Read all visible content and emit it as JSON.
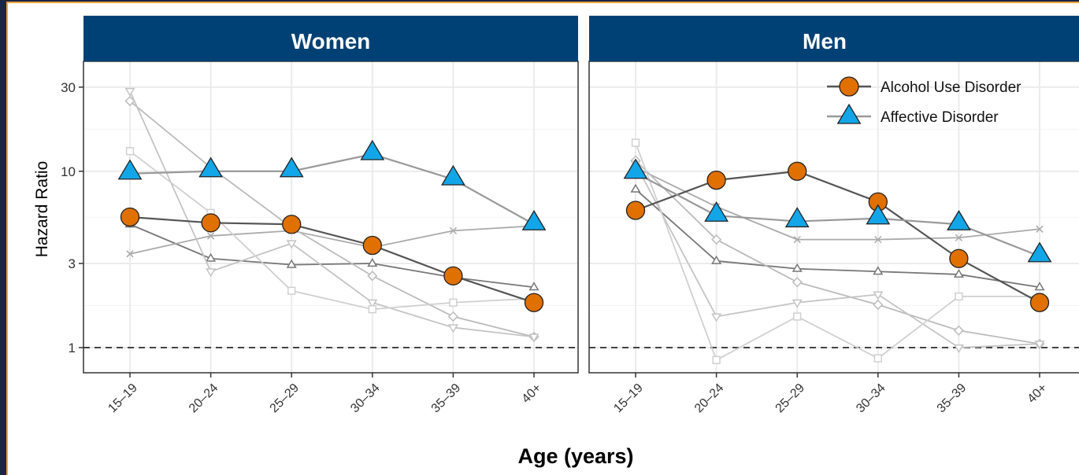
{
  "chart_data": {
    "type": "line",
    "y_scale": "log",
    "ylim": [
      0.72,
      42
    ],
    "y_ticks": [
      1,
      3,
      10,
      30
    ],
    "y_tick_labels": [
      "1",
      "3",
      "10",
      "30"
    ],
    "reference_line": 1,
    "grid": true,
    "ylabel": "Hazard Ratio",
    "xlabel": "Age (years)",
    "categories": [
      "15–19",
      "20–24",
      "25–29",
      "30–34",
      "35–39",
      "40+"
    ],
    "legend": {
      "placement": "top-right",
      "entries": [
        {
          "label": "Alcohol Use Disorder",
          "marker": "circle",
          "color": "#e07000"
        },
        {
          "label": "Affective Disorder",
          "marker": "triangle",
          "color": "#12a6e8"
        }
      ]
    },
    "panels": [
      {
        "title": "Women",
        "series": [
          {
            "name": "Alcohol Use Disorder",
            "highlight": true,
            "marker": "circle",
            "fill": "#e07000",
            "line": "#555555",
            "values": [
              5.5,
              5.1,
              5.0,
              3.8,
              2.55,
              1.8
            ]
          },
          {
            "name": "Affective Disorder",
            "highlight": true,
            "marker": "triangle",
            "fill": "#12a6e8",
            "line": "#999999",
            "values": [
              9.7,
              10.0,
              10.0,
              12.5,
              9.0,
              5.0
            ]
          },
          {
            "highlight": false,
            "marker": "triangle-open",
            "line": "#777777",
            "values": [
              5.0,
              3.2,
              2.95,
              3.0,
              2.5,
              2.2
            ]
          },
          {
            "highlight": false,
            "marker": "x",
            "line": "#aaaaaa",
            "values": [
              3.4,
              4.3,
              4.6,
              3.7,
              4.6,
              4.9
            ]
          },
          {
            "highlight": false,
            "marker": "diamond-open",
            "line": "#bbbbbb",
            "values": [
              25.0,
              10.5,
              4.8,
              2.55,
              1.5,
              1.15
            ]
          },
          {
            "highlight": false,
            "marker": "triangle-down-open",
            "line": "#c4c4c4",
            "values": [
              28.5,
              2.7,
              3.9,
              1.8,
              1.3,
              1.15
            ]
          },
          {
            "highlight": false,
            "marker": "square-open",
            "line": "#d0d0d0",
            "values": [
              13.0,
              5.8,
              2.1,
              1.65,
              1.8,
              1.9
            ]
          }
        ]
      },
      {
        "title": "Men",
        "series": [
          {
            "name": "Alcohol Use Disorder",
            "highlight": true,
            "marker": "circle",
            "fill": "#e07000",
            "line": "#555555",
            "values": [
              6.0,
              8.9,
              10.0,
              6.7,
              3.2,
              1.8
            ]
          },
          {
            "name": "Affective Disorder",
            "highlight": true,
            "marker": "triangle",
            "fill": "#12a6e8",
            "line": "#999999",
            "values": [
              9.8,
              5.6,
              5.2,
              5.4,
              5.0,
              3.3
            ]
          },
          {
            "highlight": false,
            "marker": "triangle-open",
            "line": "#777777",
            "values": [
              7.9,
              3.1,
              2.8,
              2.7,
              2.6,
              2.2
            ]
          },
          {
            "highlight": false,
            "marker": "x",
            "line": "#aaaaaa",
            "values": [
              10.5,
              6.3,
              4.1,
              4.1,
              4.2,
              4.7
            ]
          },
          {
            "highlight": false,
            "marker": "diamond-open",
            "line": "#bbbbbb",
            "values": [
              11.5,
              4.1,
              2.35,
              1.75,
              1.25,
              1.05
            ]
          },
          {
            "highlight": false,
            "marker": "triangle-down-open",
            "line": "#c4c4c4",
            "values": [
              11.0,
              1.5,
              1.8,
              2.0,
              1.0,
              1.05
            ]
          },
          {
            "highlight": false,
            "marker": "square-open",
            "line": "#d0d0d0",
            "values": [
              14.5,
              0.85,
              1.5,
              0.87,
              1.95,
              1.95
            ]
          }
        ]
      }
    ],
    "colors": {
      "strip_bg": "#004175",
      "frame_bg": "#1c2447",
      "frame_border": "#e7a33c",
      "grid": "#ebebeb",
      "panel_border": "#333333"
    }
  }
}
